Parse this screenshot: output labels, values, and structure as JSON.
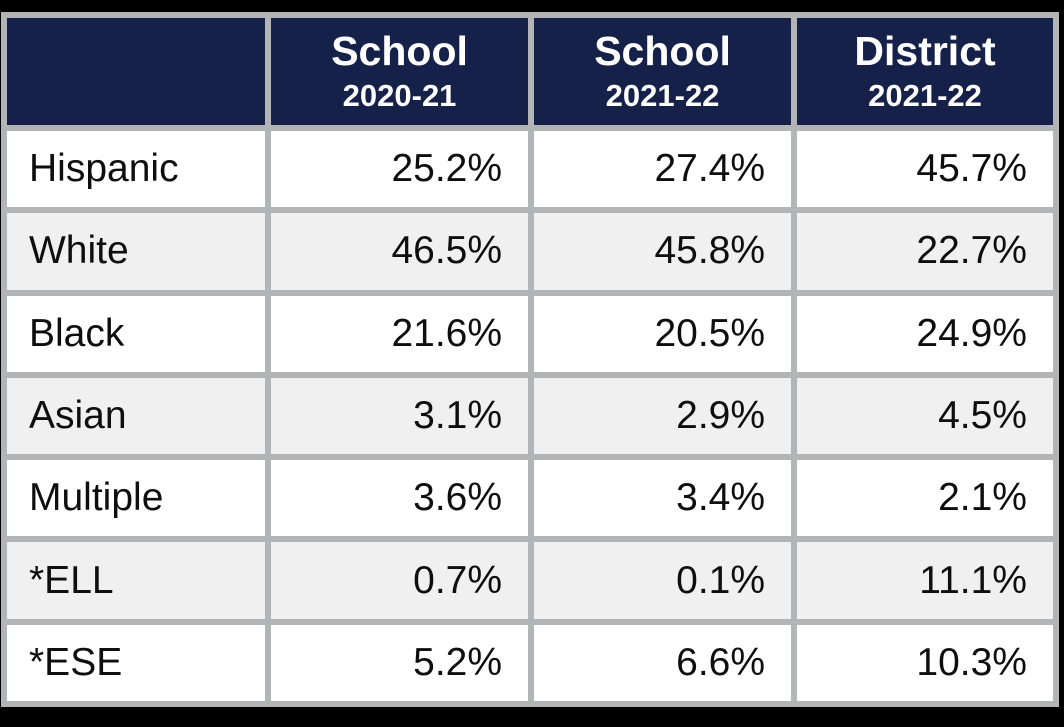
{
  "table": {
    "columns": [
      {
        "label": "",
        "sub": ""
      },
      {
        "label": "School",
        "sub": "2020-21"
      },
      {
        "label": "School",
        "sub": "2021-22"
      },
      {
        "label": "District",
        "sub": "2021-22"
      }
    ],
    "rows": [
      {
        "label": "Hispanic",
        "values": [
          "25.2%",
          "27.4%",
          "45.7%"
        ]
      },
      {
        "label": "White",
        "values": [
          "46.5%",
          "45.8%",
          "22.7%"
        ]
      },
      {
        "label": "Black",
        "values": [
          "21.6%",
          "20.5%",
          "24.9%"
        ]
      },
      {
        "label": "Asian",
        "values": [
          "3.1%",
          "2.9%",
          "4.5%"
        ]
      },
      {
        "label": "Multiple",
        "values": [
          "3.6%",
          "3.4%",
          "2.1%"
        ]
      },
      {
        "label": "*ELL",
        "values": [
          "0.7%",
          "0.1%",
          "11.1%"
        ]
      },
      {
        "label": "*ESE",
        "values": [
          "5.2%",
          "6.6%",
          "10.3%"
        ]
      }
    ]
  },
  "colors": {
    "frame_background": "#000000",
    "header_background": "#16214a",
    "header_text": "#ffffff",
    "grid_border": "#b2b4b6",
    "row_white": "#ffffff",
    "row_alt": "#f0f0f1",
    "body_text": "#0e0e0e"
  },
  "chart_data": {
    "type": "table",
    "title": "",
    "categories": [
      "Hispanic",
      "White",
      "Black",
      "Asian",
      "Multiple",
      "*ELL",
      "*ESE"
    ],
    "series": [
      {
        "name": "School 2020-21",
        "values": [
          25.2,
          46.5,
          21.6,
          3.1,
          3.6,
          0.7,
          5.2
        ]
      },
      {
        "name": "School 2021-22",
        "values": [
          27.4,
          45.8,
          20.5,
          2.9,
          3.4,
          0.1,
          6.6
        ]
      },
      {
        "name": "District 2021-22",
        "values": [
          45.7,
          22.7,
          24.9,
          4.5,
          2.1,
          11.1,
          10.3
        ]
      }
    ],
    "unit": "%",
    "layout": {
      "header_style": "dark-navy, bold, white text, two lines",
      "row_striping": "odd rows white, even rows light gray",
      "value_alignment": "right",
      "label_alignment": "left",
      "grid": "thick gray borders on all cells"
    }
  }
}
